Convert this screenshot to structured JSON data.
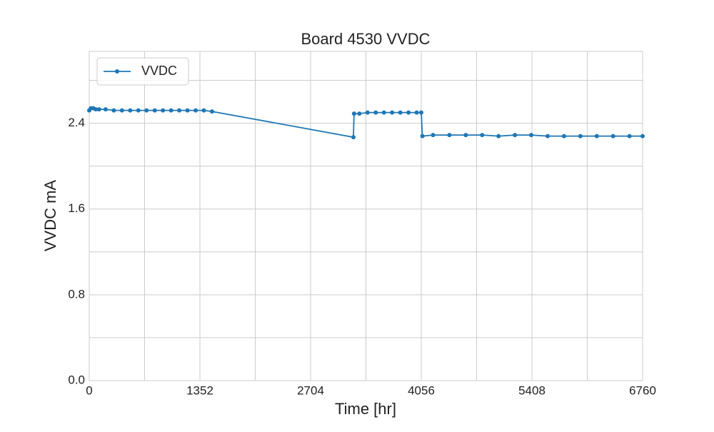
{
  "chart_data": {
    "type": "line",
    "title": "Board 4530 VVDC",
    "x_label": "Time [hr]",
    "y_label": "VVDC mA",
    "x": [
      0,
      20,
      50,
      80,
      120,
      200,
      300,
      400,
      500,
      600,
      700,
      800,
      900,
      1000,
      1100,
      1200,
      1300,
      1400,
      1500,
      3227,
      3235,
      3300,
      3400,
      3500,
      3600,
      3700,
      3800,
      3900,
      4000,
      4056,
      4070,
      4200,
      4400,
      4600,
      4800,
      5000,
      5200,
      5400,
      5600,
      5800,
      6000,
      6200,
      6400,
      6600,
      6760
    ],
    "series": [
      {
        "name": "VVDC",
        "color": "#1f77b4",
        "values": [
          2.52,
          2.54,
          2.54,
          2.53,
          2.53,
          2.53,
          2.52,
          2.52,
          2.52,
          2.52,
          2.52,
          2.52,
          2.52,
          2.52,
          2.52,
          2.52,
          2.52,
          2.52,
          2.51,
          2.27,
          2.49,
          2.49,
          2.5,
          2.5,
          2.5,
          2.5,
          2.5,
          2.5,
          2.5,
          2.5,
          2.28,
          2.29,
          2.29,
          2.29,
          2.29,
          2.28,
          2.29,
          2.29,
          2.28,
          2.28,
          2.28,
          2.28,
          2.28,
          2.28,
          2.28
        ]
      }
    ],
    "xlim": [
      0,
      6760
    ],
    "ylim": [
      0,
      3.07
    ],
    "xticks": [
      0,
      1352,
      2704,
      4056,
      5408,
      6760
    ],
    "yticks": [
      {
        "value": 0,
        "label": "0.0"
      },
      0.8,
      1.6,
      2.4
    ],
    "xminor": [
      676,
      2028,
      3380,
      4732,
      6084
    ],
    "yminor": [
      0.4,
      1.2,
      2.0,
      2.8
    ],
    "grid": true,
    "legend": "upper left"
  }
}
